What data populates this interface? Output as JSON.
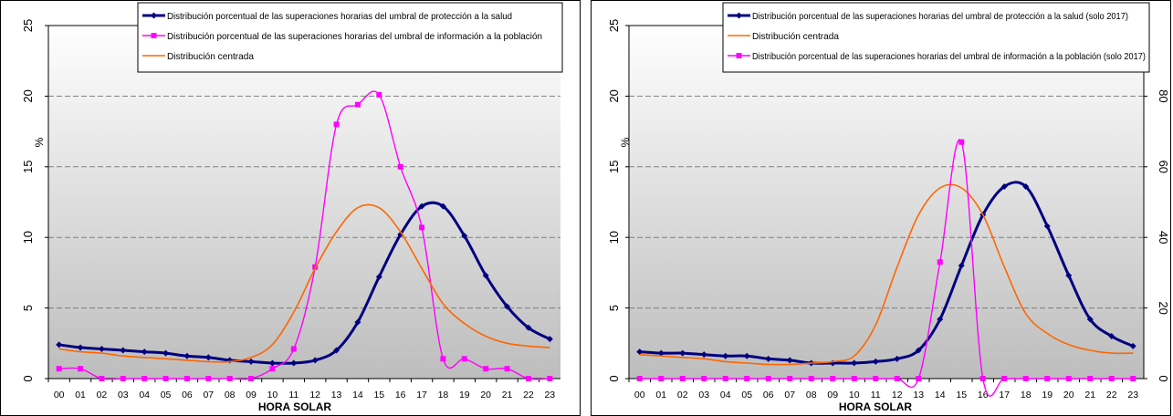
{
  "chart_data": [
    {
      "type": "line",
      "xlabel": "HORA SOLAR",
      "ylabel": "%",
      "ylim": [
        0,
        25
      ],
      "yticks": [
        0,
        5,
        10,
        15,
        20,
        25
      ],
      "grid": true,
      "legend_position": "top-right",
      "categories": [
        "00",
        "01",
        "02",
        "03",
        "04",
        "05",
        "06",
        "07",
        "08",
        "09",
        "10",
        "11",
        "12",
        "13",
        "14",
        "15",
        "16",
        "17",
        "18",
        "19",
        "20",
        "21",
        "22",
        "23"
      ],
      "series": [
        {
          "name": "Distribución porcentual de las superaciones horarias del umbral de protección a la salud",
          "color": "#000080",
          "marker": "diamond",
          "axis": "left",
          "values": [
            2.4,
            2.2,
            2.1,
            2.0,
            1.9,
            1.8,
            1.6,
            1.5,
            1.3,
            1.2,
            1.1,
            1.1,
            1.3,
            2.0,
            4.0,
            7.2,
            10.2,
            12.2,
            12.2,
            10.1,
            7.3,
            5.1,
            3.6,
            2.8
          ]
        },
        {
          "name": "Distribución porcentual de las superaciones horarias del umbral de información a la población",
          "color": "#ff00ff",
          "marker": "square",
          "axis": "left",
          "values": [
            0.7,
            0.7,
            0,
            0,
            0,
            0,
            0,
            0,
            0,
            0,
            0.7,
            2.1,
            7.9,
            18.0,
            19.4,
            20.1,
            15.0,
            10.7,
            1.4,
            1.4,
            0.7,
            0.7,
            0,
            0
          ]
        },
        {
          "name": "Distribución centrada",
          "color": "#ff6600",
          "marker": "none",
          "axis": "left",
          "values": [
            2.1,
            1.9,
            1.8,
            1.6,
            1.5,
            1.4,
            1.3,
            1.2,
            1.2,
            1.5,
            2.4,
            4.7,
            7.8,
            10.4,
            12.1,
            12.1,
            10.4,
            7.8,
            5.3,
            3.9,
            3.0,
            2.5,
            2.3,
            2.2
          ]
        }
      ]
    },
    {
      "type": "line",
      "xlabel": "HORA SOLAR",
      "ylabel": "%",
      "ylim": [
        0,
        25
      ],
      "yticks": [
        0,
        5,
        10,
        15,
        20,
        25
      ],
      "y2lim": [
        0,
        100
      ],
      "y2ticks": [
        0,
        20,
        40,
        60,
        80
      ],
      "grid": true,
      "legend_position": "top-right",
      "categories": [
        "00",
        "01",
        "02",
        "03",
        "04",
        "05",
        "06",
        "07",
        "08",
        "09",
        "10",
        "11",
        "12",
        "13",
        "14",
        "15",
        "16",
        "17",
        "18",
        "19",
        "20",
        "21",
        "22",
        "23"
      ],
      "series": [
        {
          "name": "Distribución porcentual de las superaciones horarias del umbral de protección a la salud (solo 2017)",
          "color": "#000080",
          "marker": "diamond",
          "axis": "left",
          "values": [
            1.9,
            1.8,
            1.8,
            1.7,
            1.6,
            1.6,
            1.4,
            1.3,
            1.1,
            1.1,
            1.1,
            1.2,
            1.4,
            2.0,
            4.2,
            8.0,
            11.6,
            13.6,
            13.6,
            10.8,
            7.3,
            4.2,
            3.0,
            2.3
          ]
        },
        {
          "name": "Distribución centrada",
          "color": "#ff6600",
          "marker": "none",
          "axis": "left",
          "values": [
            1.7,
            1.6,
            1.5,
            1.4,
            1.2,
            1.1,
            1.0,
            1.0,
            1.1,
            1.2,
            1.6,
            3.8,
            7.9,
            11.6,
            13.5,
            13.5,
            11.6,
            7.9,
            4.6,
            3.2,
            2.4,
            2.0,
            1.8,
            1.8
          ]
        },
        {
          "name": "Distribución porcentual de las superaciones horarias del umbral de información a la población (solo 2017)",
          "color": "#ff00ff",
          "marker": "square",
          "axis": "right",
          "values": [
            0,
            0,
            0,
            0,
            0,
            0,
            0,
            0,
            0,
            0,
            0,
            0,
            0,
            0,
            33,
            67,
            0,
            0,
            0,
            0,
            0,
            0,
            0,
            0
          ]
        }
      ]
    }
  ]
}
